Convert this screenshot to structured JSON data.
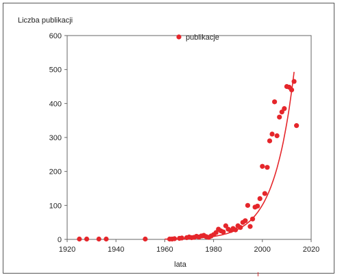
{
  "chart_data": {
    "type": "scatter",
    "title": "",
    "ylabel": "Liczba publikacji",
    "xlabel": "lata",
    "xlim": [
      1920,
      2020
    ],
    "ylim": [
      0,
      600
    ],
    "xticks": [
      1920,
      1940,
      1960,
      1980,
      2000,
      2020
    ],
    "yticks": [
      0,
      100,
      200,
      300,
      400,
      500,
      600
    ],
    "grid": false,
    "legend_position": "top-center",
    "series": [
      {
        "name": "publikacje",
        "kind": "scatter",
        "color": "#e5262b",
        "points": [
          [
            1925,
            1
          ],
          [
            1928,
            1
          ],
          [
            1933,
            1
          ],
          [
            1936,
            1
          ],
          [
            1952,
            1
          ],
          [
            1962,
            1
          ],
          [
            1963,
            1
          ],
          [
            1964,
            2
          ],
          [
            1966,
            3
          ],
          [
            1967,
            4
          ],
          [
            1969,
            5
          ],
          [
            1970,
            7
          ],
          [
            1971,
            5
          ],
          [
            1972,
            6
          ],
          [
            1973,
            9
          ],
          [
            1974,
            7
          ],
          [
            1975,
            10
          ],
          [
            1976,
            12
          ],
          [
            1977,
            8
          ],
          [
            1978,
            6
          ],
          [
            1979,
            10
          ],
          [
            1980,
            14
          ],
          [
            1981,
            20
          ],
          [
            1982,
            30
          ],
          [
            1983,
            25
          ],
          [
            1984,
            22
          ],
          [
            1985,
            40
          ],
          [
            1986,
            30
          ],
          [
            1987,
            26
          ],
          [
            1988,
            32
          ],
          [
            1989,
            28
          ],
          [
            1990,
            40
          ],
          [
            1991,
            35
          ],
          [
            1992,
            50
          ],
          [
            1993,
            55
          ],
          [
            1994,
            100
          ],
          [
            1995,
            38
          ],
          [
            1996,
            60
          ],
          [
            1997,
            95
          ],
          [
            1998,
            98
          ],
          [
            1999,
            120
          ],
          [
            2000,
            215
          ],
          [
            2001,
            135
          ],
          [
            2002,
            212
          ],
          [
            2003,
            290
          ],
          [
            2004,
            310
          ],
          [
            2005,
            405
          ],
          [
            2006,
            305
          ],
          [
            2007,
            360
          ],
          [
            2008,
            375
          ],
          [
            2009,
            385
          ],
          [
            2010,
            450
          ],
          [
            2011,
            448
          ],
          [
            2012,
            440
          ],
          [
            2013,
            465
          ],
          [
            2014,
            335
          ]
        ]
      },
      {
        "kind": "line",
        "color": "#e5262b",
        "fit": {
          "a": 8.8,
          "b": 0.122,
          "x0": 1980,
          "x_start": 1960,
          "x_end": 2013
        }
      }
    ]
  }
}
